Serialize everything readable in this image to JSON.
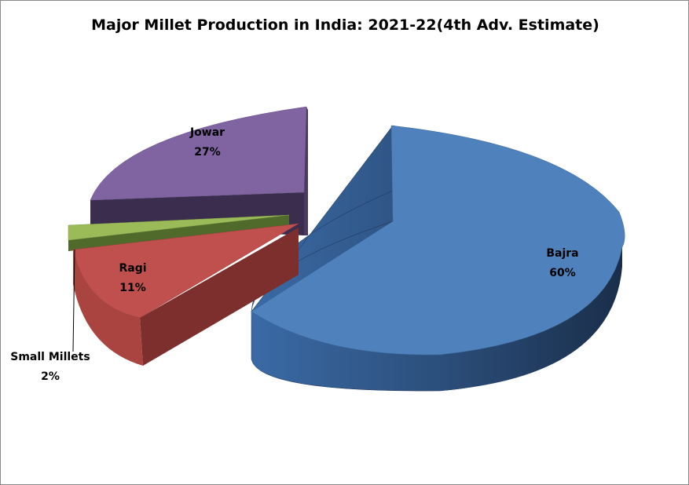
{
  "chart_data": {
    "type": "pie",
    "title": "Major Millet Production in India: 2021-22(4th Adv. Estimate)",
    "categories": [
      "Bajra",
      "Jowar",
      "Small Millets",
      "Ragi"
    ],
    "values": [
      60,
      27,
      2,
      11
    ],
    "labels": [
      "60%",
      "27%",
      "2%",
      "11%"
    ],
    "colors": [
      "#4f81bd",
      "#8064a2",
      "#9bbb59",
      "#c0504d"
    ],
    "exploded": true,
    "three_d": true
  }
}
